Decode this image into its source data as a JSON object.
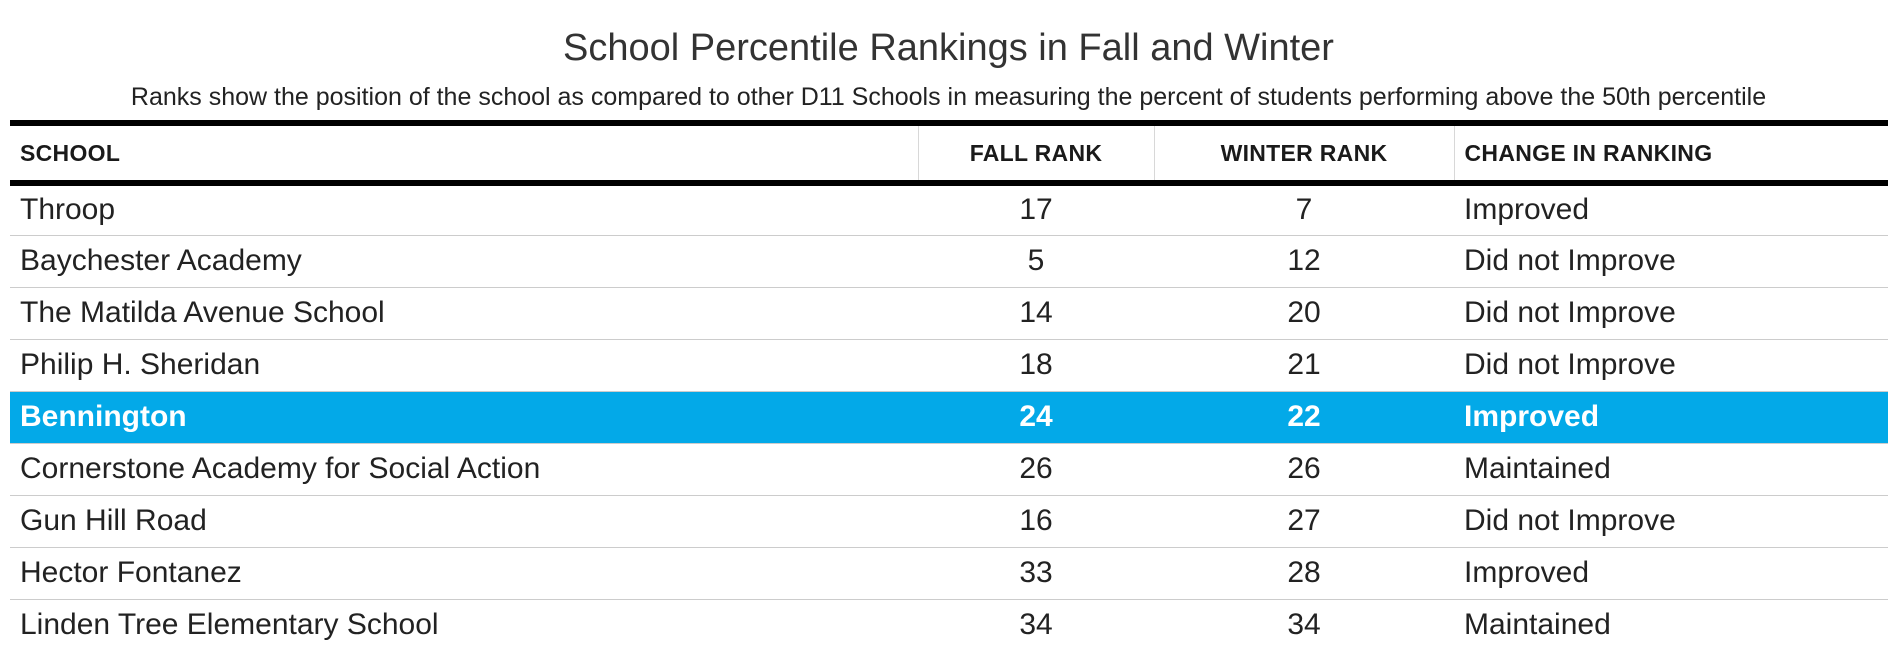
{
  "chart_data": {
    "type": "table",
    "title": "School Percentile Rankings in Fall and Winter",
    "subtitle": "Ranks show the position of the school as compared to other D11 Schools in measuring the percent of students performing above the 50th percentile",
    "columns": [
      "SCHOOL",
      "FALL RANK",
      "WINTER RANK",
      "CHANGE IN RANKING"
    ],
    "highlight_row": "Bennington",
    "highlight_color": "#03a9e8",
    "rows": [
      {
        "school": "Throop",
        "fall_rank": 17,
        "winter_rank": 7,
        "change": "Improved"
      },
      {
        "school": "Baychester Academy",
        "fall_rank": 5,
        "winter_rank": 12,
        "change": "Did not Improve"
      },
      {
        "school": "The Matilda Avenue School",
        "fall_rank": 14,
        "winter_rank": 20,
        "change": "Did not Improve"
      },
      {
        "school": "Philip H. Sheridan",
        "fall_rank": 18,
        "winter_rank": 21,
        "change": "Did not Improve"
      },
      {
        "school": "Bennington",
        "fall_rank": 24,
        "winter_rank": 22,
        "change": "Improved"
      },
      {
        "school": "Cornerstone Academy for Social Action",
        "fall_rank": 26,
        "winter_rank": 26,
        "change": "Maintained"
      },
      {
        "school": "Gun Hill Road",
        "fall_rank": 16,
        "winter_rank": 27,
        "change": "Did not Improve"
      },
      {
        "school": "Hector Fontanez",
        "fall_rank": 33,
        "winter_rank": 28,
        "change": "Improved"
      },
      {
        "school": "Linden Tree Elementary School",
        "fall_rank": 34,
        "winter_rank": 34,
        "change": "Maintained"
      }
    ]
  }
}
